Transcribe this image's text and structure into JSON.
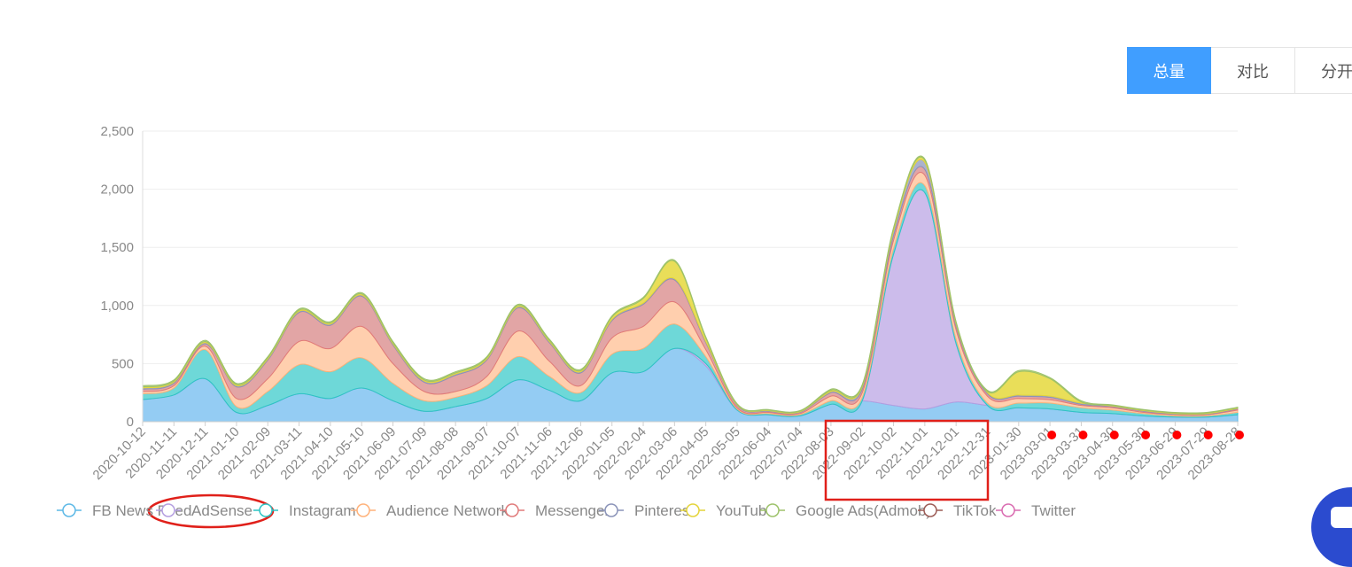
{
  "toolbar": {
    "buttons": [
      {
        "label": "总量",
        "active": true
      },
      {
        "label": "对比",
        "active": false
      },
      {
        "label": "分开",
        "active": false
      }
    ]
  },
  "chart_data": {
    "type": "area",
    "stacked": true,
    "title": "",
    "ylim": [
      0,
      2500
    ],
    "yticks": [
      "0",
      "500",
      "1,000",
      "1,500",
      "2,000",
      "2,500"
    ],
    "grid": true,
    "legend_position": "bottom",
    "x_tick_labels": [
      "2020-10-12",
      "2020-11-11",
      "2020-12-11",
      "2021-01-10",
      "2021-02-09",
      "2021-03-11",
      "2021-04-10",
      "2021-05-10",
      "2021-06-09",
      "2021-07-09",
      "2021-08-08",
      "2021-09-07",
      "2021-10-07",
      "2021-11-06",
      "2021-12-06",
      "2022-01-05",
      "2022-02-04",
      "2022-03-06",
      "2022-04-05",
      "2022-05-05",
      "2022-06-04",
      "2022-07-04",
      "2022-08-03",
      "2022-09-02",
      "2022-10-02",
      "2022-11-01",
      "2022-12-01",
      "2022-12-31",
      "2023-01-30",
      "2023-03-01",
      "2023-03-31",
      "2023-04-30",
      "2023-05-30",
      "2023-06-29",
      "2023-07-29",
      "2023-08-28"
    ],
    "series": [
      {
        "name": "FB News Feed",
        "color": "#5cb8e6",
        "fill": "#8ec9f2",
        "values": [
          190,
          230,
          370,
          80,
          140,
          240,
          200,
          290,
          180,
          90,
          130,
          200,
          360,
          270,
          180,
          420,
          430,
          630,
          480,
          100,
          60,
          50,
          150,
          180,
          140,
          110,
          170,
          140,
          120,
          110,
          80,
          70,
          50,
          40,
          40,
          60
        ]
      },
      {
        "name": "AdSense",
        "color": "#b49ee0",
        "fill": "#c9b8ea",
        "values": [
          0,
          0,
          0,
          0,
          0,
          0,
          0,
          0,
          0,
          0,
          0,
          0,
          0,
          0,
          0,
          0,
          0,
          0,
          20,
          0,
          0,
          0,
          0,
          0,
          1300,
          1860,
          500,
          0,
          0,
          0,
          0,
          0,
          0,
          0,
          0,
          0
        ]
      },
      {
        "name": "Instagram",
        "color": "#2cc4c4",
        "fill": "#66d6d6",
        "values": [
          50,
          60,
          250,
          50,
          120,
          250,
          230,
          260,
          150,
          90,
          80,
          110,
          200,
          120,
          70,
          160,
          200,
          210,
          60,
          10,
          10,
          10,
          30,
          30,
          50,
          60,
          40,
          20,
          40,
          50,
          40,
          30,
          20,
          10,
          10,
          20
        ]
      },
      {
        "name": "Audience Network",
        "color": "#ffb27a",
        "fill": "#ffccaa",
        "values": [
          20,
          20,
          30,
          70,
          110,
          200,
          200,
          270,
          170,
          80,
          50,
          80,
          220,
          130,
          60,
          140,
          190,
          190,
          60,
          10,
          10,
          10,
          40,
          40,
          70,
          90,
          80,
          60,
          40,
          30,
          20,
          20,
          10,
          10,
          10,
          20
        ]
      },
      {
        "name": "Messenger",
        "color": "#e07a7a",
        "fill": "#e0a0a0",
        "values": [
          20,
          20,
          20,
          100,
          160,
          250,
          200,
          260,
          160,
          80,
          140,
          140,
          200,
          160,
          110,
          150,
          190,
          190,
          60,
          20,
          10,
          10,
          30,
          30,
          40,
          50,
          30,
          20,
          20,
          20,
          10,
          10,
          10,
          5,
          5,
          10
        ]
      },
      {
        "name": "Pinterest",
        "color": "#8a93b8",
        "fill": "#a7aecb",
        "values": [
          10,
          10,
          10,
          10,
          10,
          10,
          10,
          10,
          10,
          10,
          10,
          10,
          10,
          10,
          10,
          10,
          10,
          10,
          10,
          5,
          5,
          5,
          10,
          20,
          40,
          60,
          20,
          10,
          10,
          10,
          10,
          5,
          5,
          5,
          5,
          5
        ]
      },
      {
        "name": "YouTube",
        "color": "#e4d43a",
        "fill": "#e8dc50",
        "values": [
          10,
          10,
          10,
          10,
          10,
          10,
          10,
          10,
          10,
          10,
          10,
          10,
          10,
          10,
          10,
          20,
          40,
          150,
          30,
          5,
          5,
          5,
          10,
          10,
          20,
          20,
          10,
          10,
          200,
          150,
          10,
          5,
          5,
          5,
          5,
          5
        ]
      },
      {
        "name": "Google Ads(Admob)",
        "color": "#9dc26a",
        "fill": "#b7d38e",
        "values": [
          10,
          10,
          10,
          10,
          10,
          10,
          10,
          10,
          10,
          10,
          10,
          10,
          10,
          10,
          10,
          10,
          10,
          10,
          10,
          5,
          5,
          5,
          10,
          10,
          10,
          10,
          10,
          10,
          10,
          10,
          10,
          5,
          5,
          5,
          5,
          5
        ]
      },
      {
        "name": "TikTok",
        "color": "#9b5b55",
        "fill": "#b07a75",
        "values": []
      },
      {
        "name": "Twitter",
        "color": "#d96bb0",
        "fill": "#e89acb",
        "values": []
      }
    ]
  }
}
